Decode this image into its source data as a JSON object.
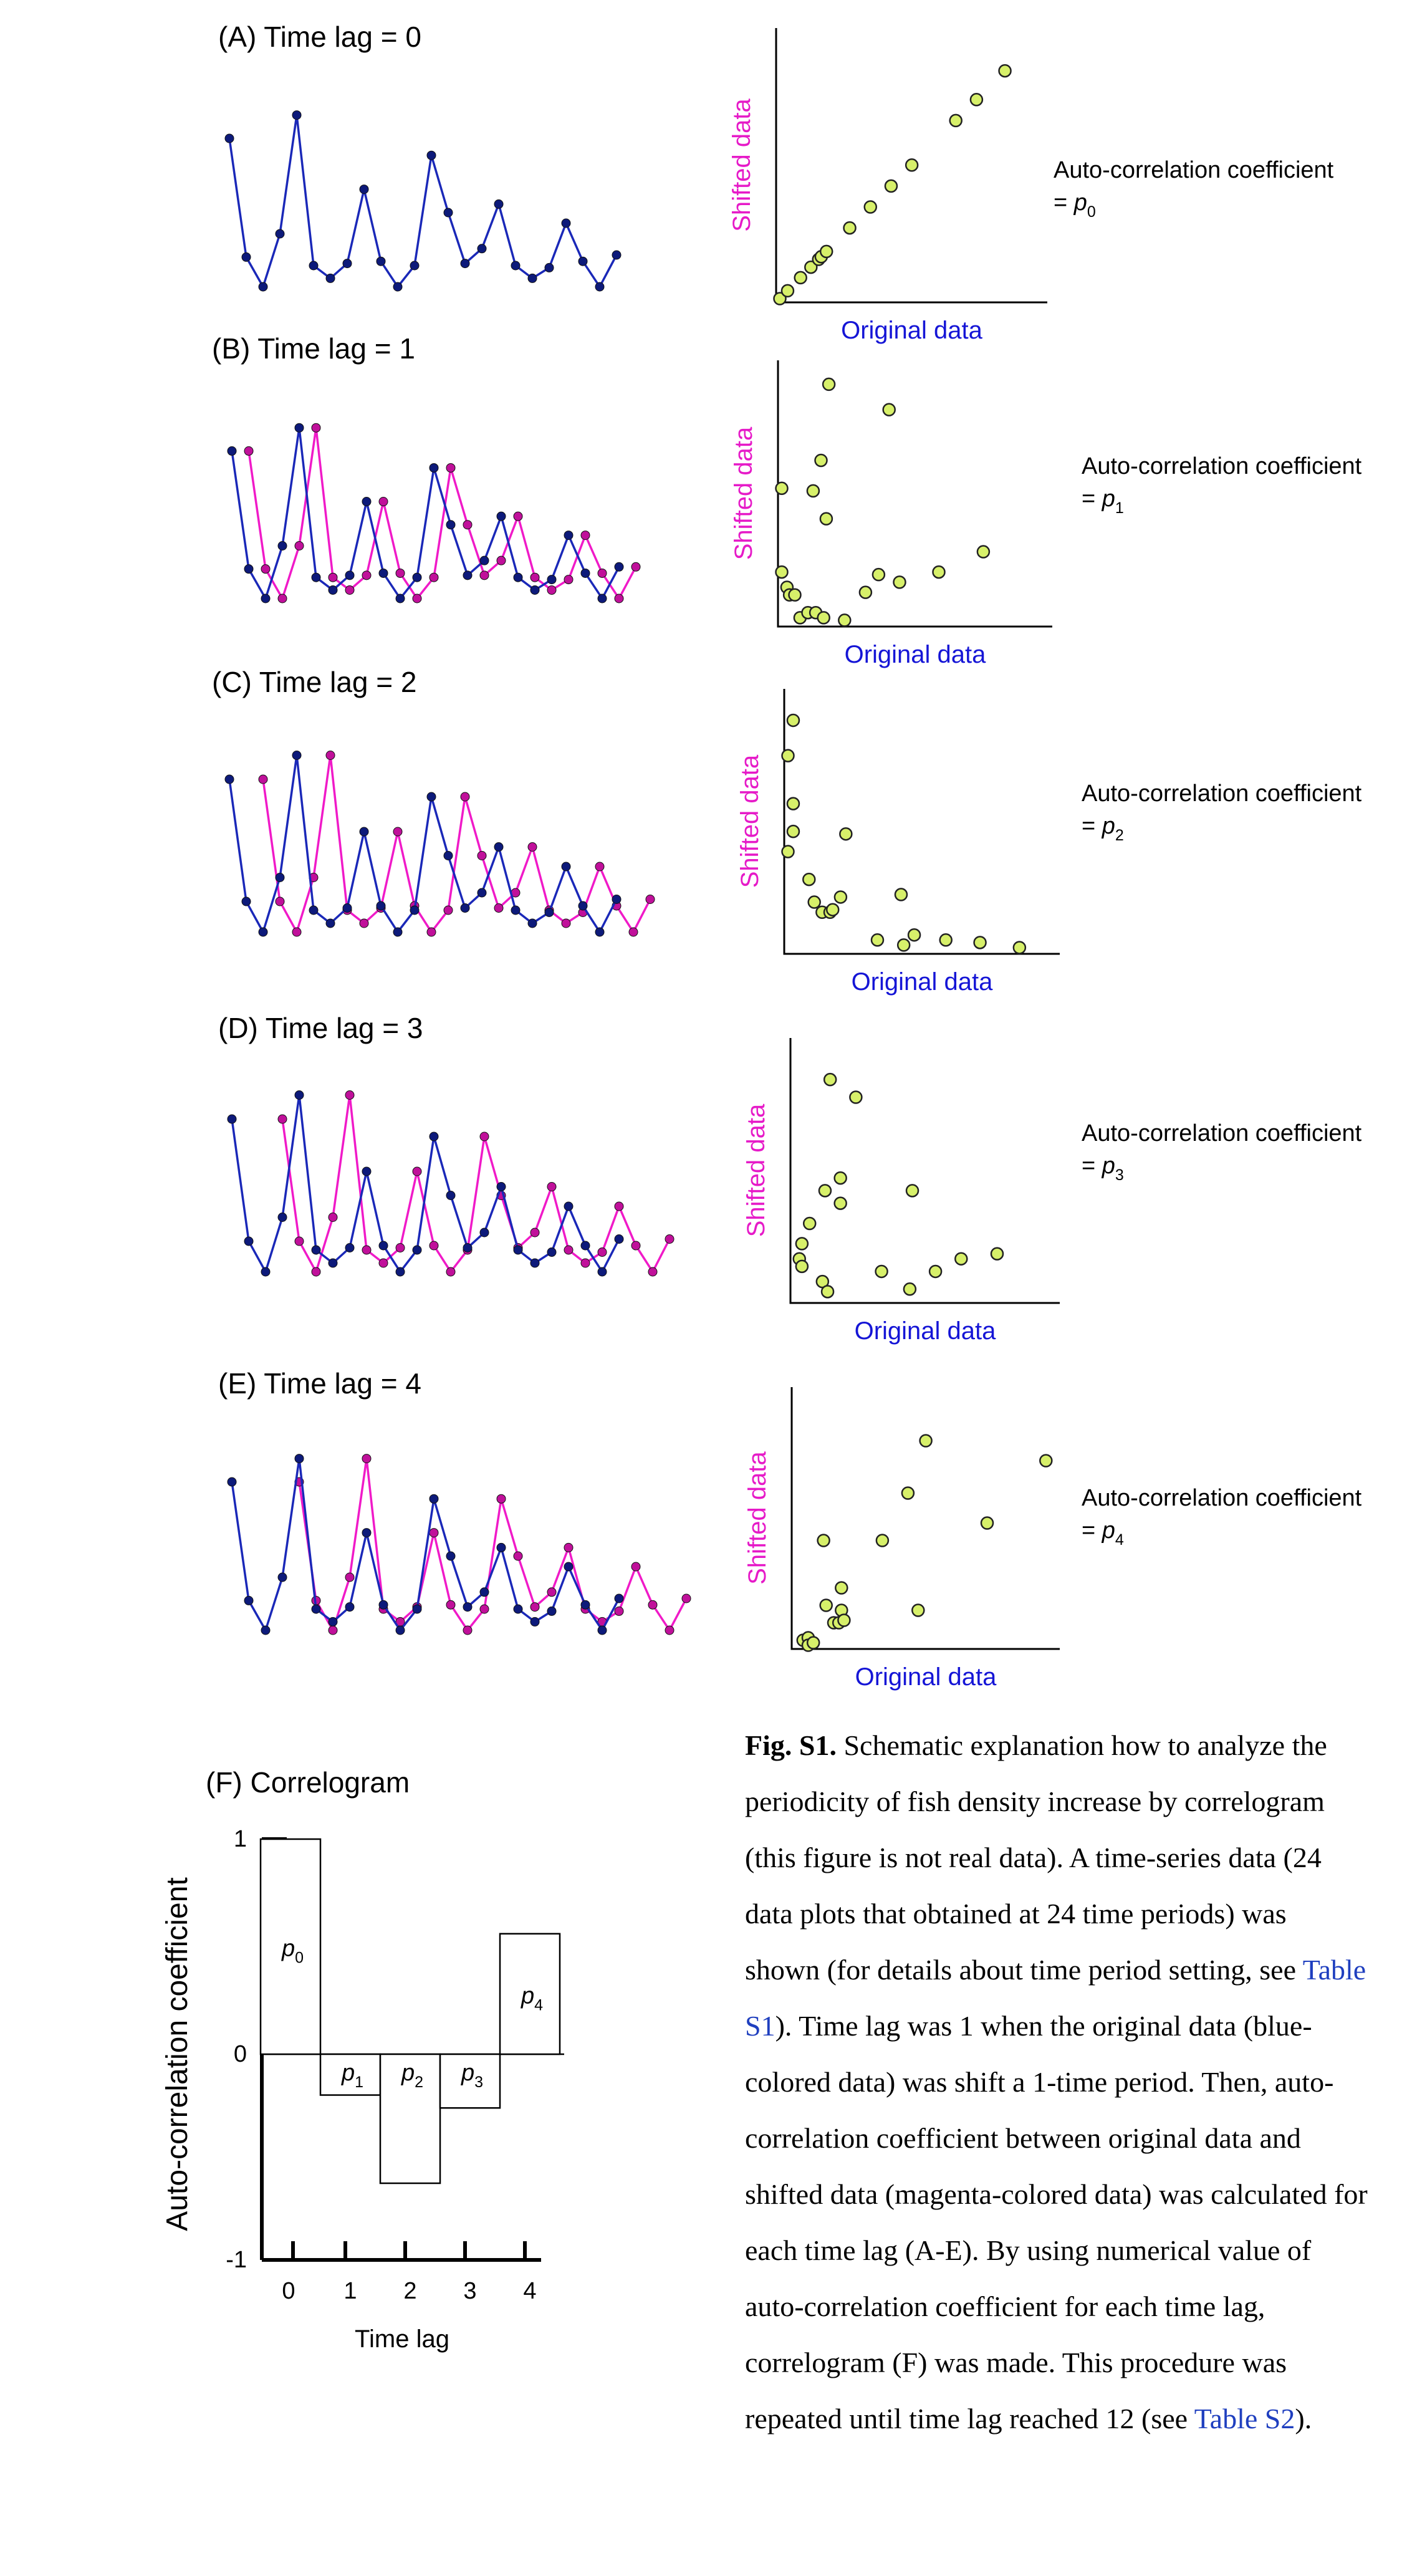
{
  "panels": [
    {
      "title": "(A) Time lag = 0",
      "lag": 0,
      "scatter_points": [
        [
          0.0,
          0.0
        ],
        [
          0.03,
          0.03
        ],
        [
          0.08,
          0.08
        ],
        [
          0.12,
          0.12
        ],
        [
          0.15,
          0.15
        ],
        [
          0.16,
          0.16
        ],
        [
          0.18,
          0.18
        ],
        [
          0.27,
          0.27
        ],
        [
          0.35,
          0.35
        ],
        [
          0.43,
          0.43
        ],
        [
          0.51,
          0.51
        ],
        [
          0.68,
          0.68
        ],
        [
          0.76,
          0.76
        ],
        [
          0.87,
          0.87
        ]
      ],
      "scatter_xlabel": "Original data",
      "scatter_ylabel": "Shifted data",
      "coef_label": "Auto-correlation coefficient",
      "coef_eq": "= ",
      "coef_symbol": "p",
      "coef_sub": "0"
    },
    {
      "title": "(B) Time lag = 1",
      "lag": 1,
      "scatter_points": [
        [
          0.0,
          0.53
        ],
        [
          0.0,
          0.2
        ],
        [
          0.02,
          0.14
        ],
        [
          0.03,
          0.11
        ],
        [
          0.05,
          0.11
        ],
        [
          0.07,
          0.02
        ],
        [
          0.1,
          0.04
        ],
        [
          0.13,
          0.04
        ],
        [
          0.16,
          0.02
        ],
        [
          0.18,
          0.94
        ],
        [
          0.12,
          0.52
        ],
        [
          0.15,
          0.64
        ],
        [
          0.17,
          0.41
        ],
        [
          0.24,
          0.01
        ],
        [
          0.32,
          0.12
        ],
        [
          0.37,
          0.19
        ],
        [
          0.41,
          0.84
        ],
        [
          0.45,
          0.16
        ],
        [
          0.6,
          0.2
        ],
        [
          0.77,
          0.28
        ]
      ],
      "scatter_xlabel": "Original data",
      "scatter_ylabel": "Shifted data",
      "coef_label": "Auto-correlation coefficient",
      "coef_eq": "= ",
      "coef_symbol": "p",
      "coef_sub": "1"
    },
    {
      "title": "(C) Time lag = 2",
      "lag": 2,
      "scatter_points": [
        [
          0.0,
          0.77
        ],
        [
          0.02,
          0.91
        ],
        [
          0.02,
          0.58
        ],
        [
          0.02,
          0.47
        ],
        [
          0.0,
          0.39
        ],
        [
          0.08,
          0.28
        ],
        [
          0.1,
          0.19
        ],
        [
          0.13,
          0.15
        ],
        [
          0.16,
          0.15
        ],
        [
          0.17,
          0.16
        ],
        [
          0.2,
          0.21
        ],
        [
          0.22,
          0.46
        ],
        [
          0.34,
          0.04
        ],
        [
          0.44,
          0.02
        ],
        [
          0.48,
          0.06
        ],
        [
          0.43,
          0.22
        ],
        [
          0.6,
          0.04
        ],
        [
          0.73,
          0.03
        ],
        [
          0.88,
          0.01
        ]
      ],
      "scatter_xlabel": "Original data",
      "scatter_ylabel": "Shifted data",
      "coef_label": "Auto-correlation coefficient",
      "coef_eq": "= ",
      "coef_symbol": "p",
      "coef_sub": "2"
    },
    {
      "title": "(D) Time lag = 3",
      "lag": 3,
      "scatter_points": [
        [
          0.02,
          0.16
        ],
        [
          0.03,
          0.22
        ],
        [
          0.03,
          0.13
        ],
        [
          0.06,
          0.3
        ],
        [
          0.11,
          0.07
        ],
        [
          0.13,
          0.03
        ],
        [
          0.12,
          0.43
        ],
        [
          0.14,
          0.87
        ],
        [
          0.18,
          0.48
        ],
        [
          0.18,
          0.38
        ],
        [
          0.24,
          0.8
        ],
        [
          0.34,
          0.11
        ],
        [
          0.45,
          0.04
        ],
        [
          0.46,
          0.43
        ],
        [
          0.55,
          0.11
        ],
        [
          0.65,
          0.16
        ],
        [
          0.79,
          0.18
        ]
      ],
      "scatter_xlabel": "Original data",
      "scatter_ylabel": "Shifted data",
      "coef_label": "Auto-correlation coefficient",
      "coef_eq": "= ",
      "coef_symbol": "p",
      "coef_sub": "3"
    },
    {
      "title": "(E) Time lag = 4",
      "lag": 4,
      "scatter_points": [
        [
          0.03,
          0.02
        ],
        [
          0.05,
          0.03
        ],
        [
          0.05,
          0.0
        ],
        [
          0.07,
          0.01
        ],
        [
          0.11,
          0.42
        ],
        [
          0.12,
          0.16
        ],
        [
          0.15,
          0.09
        ],
        [
          0.17,
          0.09
        ],
        [
          0.18,
          0.14
        ],
        [
          0.18,
          0.23
        ],
        [
          0.19,
          0.1
        ],
        [
          0.34,
          0.42
        ],
        [
          0.44,
          0.61
        ],
        [
          0.48,
          0.14
        ],
        [
          0.51,
          0.82
        ],
        [
          0.75,
          0.49
        ],
        [
          0.98,
          0.74
        ]
      ],
      "scatter_xlabel": "Original data",
      "scatter_ylabel": "Shifted data",
      "coef_label": "Auto-correlation coefficient",
      "coef_eq": "= ",
      "coef_symbol": "p",
      "coef_sub": "4"
    }
  ],
  "series_original": [
    0.7,
    0.14,
    0.0,
    0.25,
    0.81,
    0.1,
    0.04,
    0.11,
    0.46,
    0.12,
    0.0,
    0.1,
    0.62,
    0.35,
    0.11,
    0.18,
    0.39,
    0.1,
    0.04,
    0.09,
    0.3,
    0.12,
    0.0,
    0.15
  ],
  "colors": {
    "original": "#1a28b8",
    "original_marker": "#0d1a7a",
    "shifted": "#f01ac8",
    "shifted_marker": "#c0109a",
    "scatter_marker": "#d7f06a",
    "xlabel": "#1515d6",
    "ylabel": "#e61ac8",
    "axis": "#000000",
    "link": "#1f3fbf"
  },
  "chart_data": {
    "type": "bar",
    "title": "(F) Correlogram",
    "xlabel": "Time lag",
    "ylabel": "Auto-correlation coefficient",
    "categories": [
      "0",
      "1",
      "2",
      "3",
      "4"
    ],
    "values": [
      1.0,
      -0.19,
      -0.6,
      -0.25,
      0.56
    ],
    "bar_labels": [
      {
        "symbol": "p",
        "sub": "0"
      },
      {
        "symbol": "p",
        "sub": "1"
      },
      {
        "symbol": "p",
        "sub": "2"
      },
      {
        "symbol": "p",
        "sub": "3"
      },
      {
        "symbol": "p",
        "sub": "4"
      }
    ],
    "ylim": [
      -1,
      1
    ],
    "yticks": [
      "1",
      "0",
      "-1"
    ],
    "grid": false
  },
  "caption": {
    "bold": "Fig. S1.",
    "text_1": " Schematic explanation how to analyze the periodicity of fish density increase by correlogram (this figure is not real data). A time-series data (24 data plots that obtained at 24 time periods) was shown (for details about time period setting, see ",
    "link_1": "Table S1",
    "text_2": "). Time lag was 1 when the original data (blue-colored data) was shift a 1-time period. Then, auto-correlation coefficient between original data and shifted data (magenta-colored data) was calculated for each time lag (A-E). By using numerical value of auto-correlation coefficient for each time lag, correlogram (F) was made. This procedure was repeated until time lag reached 12 (see ",
    "link_2": "Table S2",
    "text_3": ")."
  }
}
